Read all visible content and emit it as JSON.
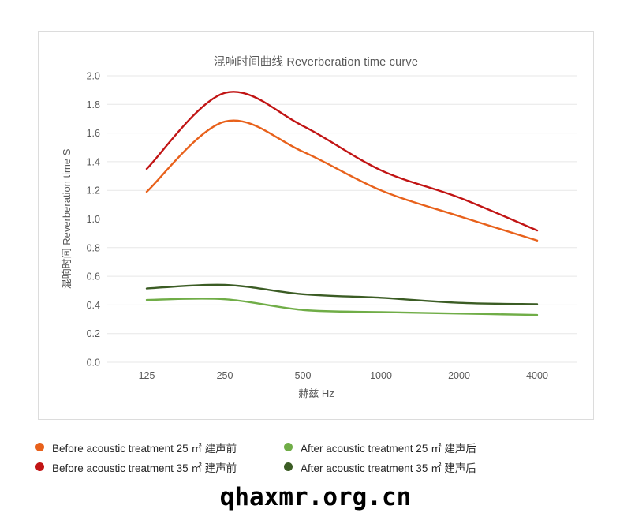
{
  "page": {
    "watermark": "qhaxmr.org.cn"
  },
  "chart_data": {
    "type": "line",
    "title": "混响时间曲线 Reverberation time curve",
    "xlabel": "赫兹 Hz",
    "ylabel": "混响时间 Reverberation time  S",
    "categories": [
      "125",
      "250",
      "500",
      "1000",
      "2000",
      "4000"
    ],
    "ylim": [
      0,
      2.0
    ],
    "ytick_step": 0.2,
    "grid": "horizontal-only",
    "legend_position": "bottom, 2 columns x 2 rows",
    "colors": {
      "grid": "#e7e7e7",
      "axis_text": "#595959",
      "legend_text": "#262626"
    },
    "series": [
      {
        "name": "Before acoustic treatment 25 ㎡ 建声前",
        "color": "#e8611b",
        "values": [
          1.19,
          1.68,
          1.47,
          1.2,
          1.02,
          0.85
        ]
      },
      {
        "name": "Before acoustic treatment 35 ㎡ 建声前",
        "color": "#c11414",
        "values": [
          1.35,
          1.88,
          1.65,
          1.34,
          1.15,
          0.92
        ]
      },
      {
        "name": "After acoustic treatment 25 ㎡ 建声后",
        "color": "#70ad47",
        "values": [
          0.435,
          0.44,
          0.365,
          0.35,
          0.34,
          0.33
        ]
      },
      {
        "name": "After acoustic treatment 35 ㎡ 建声后",
        "color": "#3b5c24",
        "values": [
          0.515,
          0.54,
          0.475,
          0.45,
          0.415,
          0.405
        ]
      }
    ]
  }
}
